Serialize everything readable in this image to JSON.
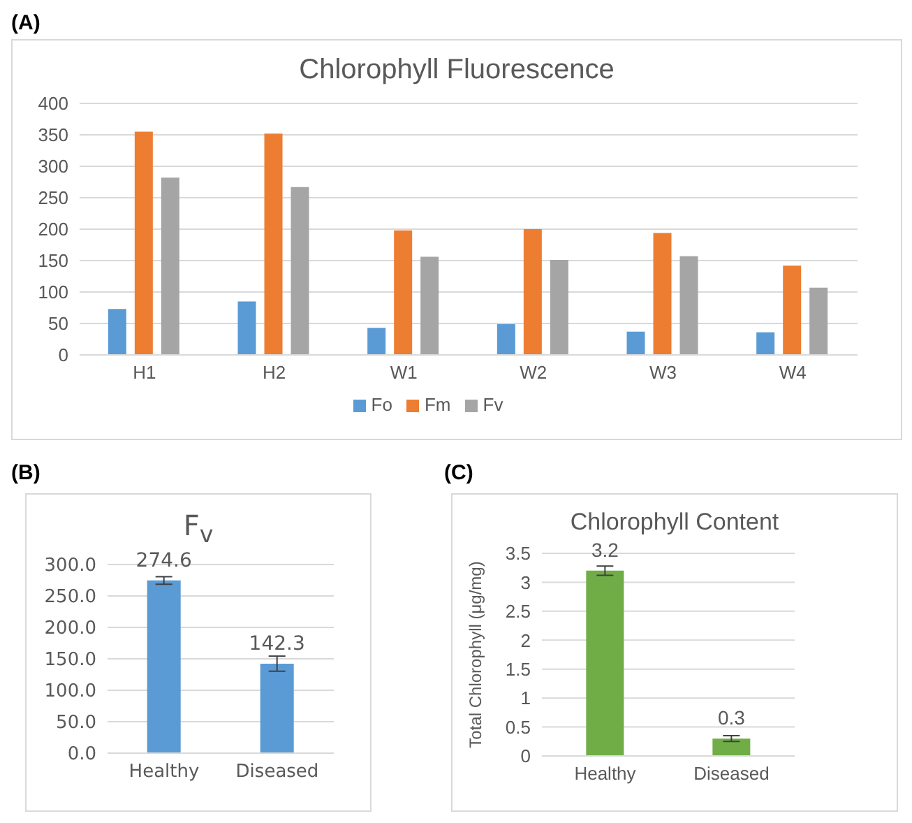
{
  "chart_data": [
    {
      "type": "bar",
      "title": "Chlorophyll Fluorescence",
      "annotations": [
        "(A)"
      ],
      "categories": [
        "H1",
        "H2",
        "W1",
        "W2",
        "W3",
        "W4"
      ],
      "series": [
        {
          "name": "Fo",
          "color": "#5b9bd5",
          "values": [
            73,
            85,
            43,
            49,
            37,
            36
          ]
        },
        {
          "name": "Fm",
          "color": "#ed7d31",
          "values": [
            355,
            352,
            198,
            200,
            194,
            142
          ]
        },
        {
          "name": "Fv",
          "color": "#a5a5a5",
          "values": [
            282,
            267,
            156,
            151,
            157,
            107
          ]
        }
      ],
      "ylim": [
        0,
        400
      ],
      "yticks": [
        0,
        50,
        100,
        150,
        200,
        250,
        300,
        350,
        400
      ],
      "grid": "y",
      "legend": "bottom"
    },
    {
      "type": "bar",
      "title": "F$_{v}$",
      "annotations": [
        "(B)"
      ],
      "categories": [
        "Healthy",
        "Diseased"
      ],
      "values": [
        274.6,
        142.3
      ],
      "errors": [
        6,
        12
      ],
      "color": "#5b9bd5",
      "ylim": [
        0,
        300
      ],
      "yticks": [
        {
          "value": 0,
          "label": "0.0"
        },
        {
          "value": 50,
          "label": "50.0"
        },
        {
          "value": 100,
          "label": "100.0"
        },
        {
          "value": 150,
          "label": "150.0"
        },
        {
          "value": 200,
          "label": "200.0"
        },
        {
          "value": 250,
          "label": "250.0"
        },
        {
          "value": 300,
          "label": "300.0"
        }
      ],
      "grid": "y",
      "data_labels": true
    },
    {
      "type": "bar",
      "title": "Chlorophyll Content",
      "annotations": [
        "(C)"
      ],
      "ylabel": "Total Chlorophyll (μg/mg)",
      "categories": [
        "Healthy",
        "Diseased"
      ],
      "values": [
        3.2,
        0.3
      ],
      "errors": [
        0.08,
        0.05
      ],
      "color": "#70ad47",
      "ylim": [
        0,
        3.5
      ],
      "yticks": [
        0,
        0.5,
        1,
        1.5,
        2,
        2.5,
        3,
        3.5
      ],
      "grid": "y",
      "data_labels": true
    }
  ]
}
